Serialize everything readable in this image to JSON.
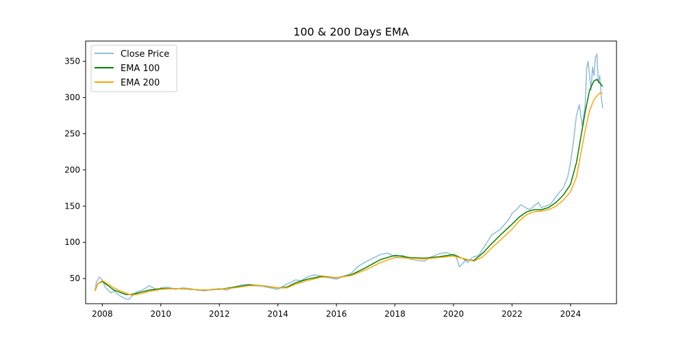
{
  "chart_data": {
    "type": "line",
    "title": "100 & 200 Days EMA",
    "xlabel": "",
    "ylabel": "",
    "xlim": [
      2007.43,
      2025.57
    ],
    "ylim": [
      15.2,
      378
    ],
    "x_ticks": [
      2008,
      2010,
      2012,
      2014,
      2016,
      2018,
      2020,
      2022,
      2024
    ],
    "x_tick_labels": [
      "2008",
      "2010",
      "2012",
      "2014",
      "2016",
      "2018",
      "2020",
      "2022",
      "2024"
    ],
    "y_ticks": [
      50,
      100,
      150,
      200,
      250,
      300,
      350
    ],
    "y_tick_labels": [
      "50",
      "100",
      "150",
      "200",
      "250",
      "300",
      "350"
    ],
    "grid": false,
    "legend_position": "upper-left",
    "series": [
      {
        "name": "Close Price",
        "color": "#1f77b4",
        "opacity": 0.5,
        "x": [
          2007.75,
          2007.8,
          2007.9,
          2008.0,
          2008.1,
          2008.2,
          2008.3,
          2008.4,
          2008.5,
          2008.6,
          2008.7,
          2008.8,
          2008.9,
          2009.0,
          2009.1,
          2009.2,
          2009.3,
          2009.4,
          2009.5,
          2009.6,
          2009.7,
          2009.8,
          2009.9,
          2010.0,
          2010.25,
          2010.5,
          2010.75,
          2011.0,
          2011.25,
          2011.5,
          2011.75,
          2012.0,
          2012.25,
          2012.5,
          2012.75,
          2013.0,
          2013.25,
          2013.5,
          2013.75,
          2014.0,
          2014.2,
          2014.4,
          2014.6,
          2014.8,
          2015.0,
          2015.25,
          2015.5,
          2015.75,
          2016.0,
          2016.25,
          2016.5,
          2016.75,
          2017.0,
          2017.25,
          2017.5,
          2017.75,
          2018.0,
          2018.25,
          2018.5,
          2018.75,
          2019.0,
          2019.25,
          2019.5,
          2019.75,
          2020.0,
          2020.1,
          2020.2,
          2020.3,
          2020.4,
          2020.5,
          2020.6,
          2020.7,
          2020.8,
          2020.9,
          2021.0,
          2021.15,
          2021.3,
          2021.45,
          2021.6,
          2021.75,
          2021.9,
          2022.0,
          2022.15,
          2022.3,
          2022.45,
          2022.6,
          2022.75,
          2022.9,
          2023.0,
          2023.15,
          2023.3,
          2023.45,
          2023.6,
          2023.75,
          2023.9,
          2024.0,
          2024.1,
          2024.2,
          2024.3,
          2024.4,
          2024.5,
          2024.55,
          2024.6,
          2024.65,
          2024.7,
          2024.75,
          2024.8,
          2024.85,
          2024.9,
          2024.95,
          2025.0,
          2025.05,
          2025.1
        ],
        "values": [
          33,
          45,
          52,
          48,
          38,
          34,
          30,
          33,
          29,
          26,
          24,
          22,
          21,
          25,
          29,
          32,
          33,
          35,
          37,
          40,
          38,
          36,
          34,
          37,
          38,
          35,
          37,
          36,
          34,
          33,
          35,
          36,
          34,
          38,
          41,
          42,
          40,
          39,
          37,
          35,
          40,
          44,
          48,
          47,
          52,
          55,
          53,
          51,
          49,
          53,
          57,
          67,
          73,
          78,
          83,
          85,
          80,
          82,
          77,
          75,
          74,
          80,
          84,
          86,
          82,
          79,
          66,
          70,
          75,
          72,
          78,
          80,
          81,
          84,
          91,
          100,
          110,
          114,
          118,
          125,
          132,
          140,
          145,
          152,
          148,
          145,
          150,
          155,
          148,
          150,
          152,
          160,
          168,
          175,
          190,
          210,
          240,
          275,
          290,
          260,
          290,
          340,
          350,
          330,
          310,
          342,
          330,
          355,
          360,
          320,
          330,
          300,
          285
        ]
      },
      {
        "name": "EMA 100",
        "color": "#008000",
        "opacity": 1,
        "x": [
          2007.75,
          2007.85,
          2008.0,
          2008.2,
          2008.4,
          2008.6,
          2008.8,
          2009.0,
          2009.3,
          2009.6,
          2010.0,
          2010.5,
          2011.0,
          2011.5,
          2012.0,
          2012.5,
          2013.0,
          2013.5,
          2014.0,
          2014.3,
          2014.6,
          2015.0,
          2015.5,
          2016.0,
          2016.5,
          2017.0,
          2017.5,
          2018.0,
          2018.5,
          2019.0,
          2019.5,
          2020.0,
          2020.4,
          2020.7,
          2021.0,
          2021.3,
          2021.6,
          2022.0,
          2022.25,
          2022.5,
          2022.75,
          2023.0,
          2023.25,
          2023.5,
          2023.75,
          2024.0,
          2024.2,
          2024.35,
          2024.5,
          2024.65,
          2024.8,
          2024.9,
          2025.0,
          2025.1
        ],
        "values": [
          33,
          43,
          46,
          40,
          34,
          31,
          28,
          28,
          31,
          34,
          36,
          36,
          35,
          34,
          35,
          38,
          41,
          40,
          37,
          38,
          44,
          49,
          53,
          51,
          55,
          65,
          76,
          82,
          79,
          78,
          80,
          83,
          76,
          75,
          85,
          98,
          110,
          125,
          135,
          142,
          145,
          145,
          148,
          155,
          165,
          180,
          210,
          245,
          280,
          310,
          323,
          325,
          320,
          315
        ]
      },
      {
        "name": "EMA 200",
        "color": "#ffa500",
        "opacity": 1,
        "x": [
          2007.75,
          2007.85,
          2008.0,
          2008.2,
          2008.4,
          2008.6,
          2008.8,
          2009.0,
          2009.3,
          2009.6,
          2010.0,
          2010.5,
          2011.0,
          2011.5,
          2012.0,
          2012.5,
          2013.0,
          2013.5,
          2014.0,
          2014.3,
          2014.6,
          2015.0,
          2015.5,
          2016.0,
          2016.5,
          2017.0,
          2017.5,
          2018.0,
          2018.5,
          2019.0,
          2019.5,
          2020.0,
          2020.4,
          2020.7,
          2021.0,
          2021.3,
          2021.6,
          2022.0,
          2022.25,
          2022.5,
          2022.75,
          2023.0,
          2023.25,
          2023.5,
          2023.75,
          2024.0,
          2024.2,
          2024.35,
          2024.5,
          2024.65,
          2024.8,
          2024.9,
          2025.0,
          2025.1
        ],
        "values": [
          33,
          43,
          47,
          42,
          37,
          33,
          30,
          27,
          29,
          32,
          35,
          36,
          35,
          34,
          35,
          37,
          40,
          40,
          37,
          37,
          42,
          47,
          52,
          51,
          54,
          62,
          72,
          79,
          78,
          77,
          79,
          81,
          77,
          74,
          80,
          92,
          103,
          118,
          130,
          138,
          142,
          143,
          145,
          150,
          158,
          170,
          190,
          222,
          255,
          282,
          297,
          302,
          306,
          306
        ]
      }
    ]
  }
}
